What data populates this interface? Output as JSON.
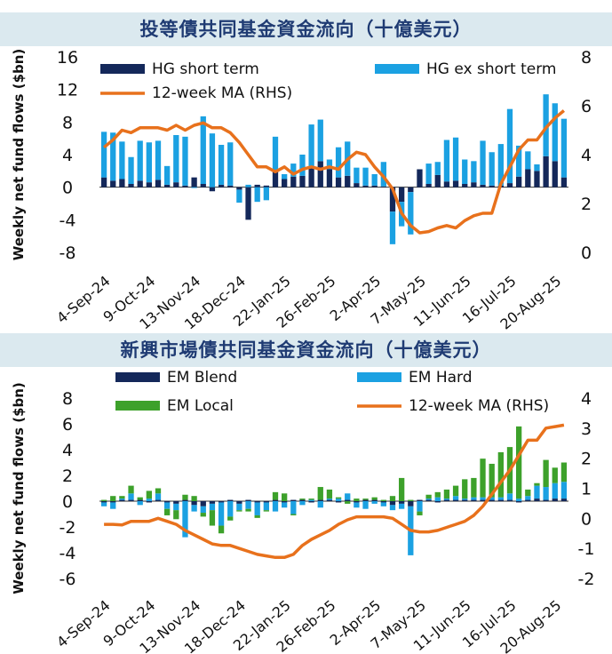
{
  "chart_data": [
    {
      "type": "bar",
      "title": "投等債共同基金資金流向（十億美元）",
      "ylabel": "Weekly net fund flows ($bn)",
      "ylim": [
        -8,
        16
      ],
      "y_ticks": [
        "16",
        "12",
        "8",
        "4",
        "0",
        "-4",
        "-8"
      ],
      "y2lim": [
        0,
        8
      ],
      "y2_ticks": [
        "8",
        "6",
        "4",
        "2",
        "0"
      ],
      "x_tick_labels": [
        "4-Sep-24",
        "9-Oct-24",
        "13-Nov-24",
        "18-Dec-24",
        "22-Jan-25",
        "26-Feb-25",
        "2-Apr-25",
        "7-May-25",
        "11-Jun-25",
        "16-Jul-25",
        "20-Aug-25"
      ],
      "legend": [
        "HG short term",
        "HG ex short term",
        "12-week MA (RHS)"
      ],
      "colors": {
        "short": "#14285a",
        "exshort": "#1ba1e2",
        "ma": "#e8711c"
      },
      "series": [
        {
          "name": "HG short term",
          "values": [
            1.2,
            0.8,
            1.0,
            0.4,
            0.8,
            0.6,
            0.9,
            0.3,
            0.6,
            0.2,
            1.2,
            0.4,
            -0.5,
            0.3,
            0.2,
            -0.3,
            -4.0,
            0.3,
            0.2,
            2.0,
            1.0,
            1.3,
            1.4,
            2.5,
            3.2,
            2.2,
            1.2,
            1.4,
            0.5,
            0.2,
            0.2,
            0.1,
            -3.0,
            -1.8,
            -0.6,
            2.2,
            0.4,
            1.5,
            0.7,
            0.8,
            0.4,
            0.6,
            0.3,
            0.2,
            0.2,
            0.5,
            1.3,
            2.2,
            2.0,
            3.8,
            3.2,
            1.2
          ]
        },
        {
          "name": "HG ex short term",
          "values": [
            5.6,
            5.9,
            4.6,
            3.3,
            4.9,
            4.9,
            4.8,
            2.3,
            5.8,
            6.0,
            -0.1,
            8.3,
            6.6,
            4.9,
            5.3,
            -1.6,
            0.3,
            -1.8,
            -1.6,
            4.2,
            0.6,
            1.6,
            2.6,
            5.2,
            5.1,
            1.2,
            3.7,
            4.2,
            1.9,
            2.2,
            1.4,
            3.0,
            -4.0,
            -3.0,
            -5.2,
            0,
            2.5,
            1.6,
            5.1,
            5.3,
            3.0,
            2.6,
            5.4,
            4.1,
            5.1,
            9.1,
            3.8,
            2.2,
            0.8,
            7.6,
            7.1,
            7.2
          ]
        },
        {
          "name": "12-week MA (RHS)",
          "values": [
            4.3,
            4.6,
            5.0,
            4.9,
            5.1,
            5.1,
            5.1,
            5.0,
            5.2,
            5.0,
            5.2,
            5.3,
            5.1,
            5.1,
            4.9,
            4.5,
            4.0,
            3.5,
            3.5,
            3.3,
            3.5,
            3.2,
            3.4,
            3.5,
            3.4,
            3.5,
            3.4,
            3.8,
            4.1,
            4.0,
            3.5,
            3.1,
            2.6,
            1.6,
            1.1,
            0.8,
            0.85,
            1.0,
            1.1,
            1.0,
            1.3,
            1.5,
            1.6,
            1.6,
            2.8,
            3.5,
            4.2,
            4.6,
            4.6,
            5.1,
            5.5,
            5.8
          ]
        }
      ]
    },
    {
      "type": "bar",
      "title": "新興市場債共同基金資金流向（十億美元）",
      "ylabel": "Weekly net fund flows ($bn)",
      "ylim": [
        -6,
        8
      ],
      "y_ticks": [
        "8",
        "6",
        "4",
        "2",
        "0",
        "-2",
        "-4",
        "-6"
      ],
      "y2lim": [
        -2,
        4
      ],
      "y2_ticks": [
        "4",
        "3",
        "2",
        "1",
        "0",
        "-1",
        "-2"
      ],
      "x_tick_labels": [
        "4-Sep-24",
        "9-Oct-24",
        "13-Nov-24",
        "18-Dec-24",
        "22-Jan-25",
        "26-Feb-25",
        "2-Apr-25",
        "7-May-25",
        "11-Jun-25",
        "16-Jul-25",
        "20-Aug-25"
      ],
      "legend": [
        "EM Blend",
        "EM Hard",
        "EM Local",
        "12-week MA (RHS)"
      ],
      "colors": {
        "blend": "#14285a",
        "hard": "#1ba1e2",
        "local": "#3da12b",
        "ma": "#e8711c"
      },
      "series": [
        {
          "name": "EM Blend",
          "values": [
            -0.1,
            -0.1,
            0.1,
            0.1,
            0.1,
            -0.1,
            0.1,
            -0.1,
            -0.2,
            0.1,
            -0.3,
            -0.4,
            -0.2,
            -0.1,
            0.1,
            -0.2,
            0.1,
            -0.1,
            -0.1,
            0.1,
            -0.1,
            0.1,
            0.1,
            -0.1,
            0.1,
            0.1,
            -0.1,
            0.1,
            -0.1,
            0.1,
            0.1,
            -0.1,
            -0.3,
            -0.2,
            -0.4,
            0.1,
            0.1,
            -0.1,
            0.1,
            0.1,
            0.1,
            0.1,
            0.1,
            0.1,
            0.1,
            0.1,
            -0.1,
            0.1,
            0.2,
            0.1,
            0.2,
            0.2
          ]
        },
        {
          "name": "EM Hard",
          "values": [
            -0.3,
            -0.5,
            0.1,
            0.5,
            -0.3,
            0.2,
            0.5,
            -0.5,
            -0.5,
            -2.8,
            -0.5,
            -0.5,
            -0.5,
            -1.8,
            -1.2,
            -0.5,
            -0.6,
            -1.0,
            -0.6,
            -0.8,
            -0.4,
            -1.0,
            -0.3,
            0.1,
            -0.5,
            0.1,
            0.2,
            0.5,
            -0.4,
            -0.6,
            -0.2,
            -0.3,
            -0.4,
            -0.4,
            -3.8,
            -0.8,
            0.1,
            0.3,
            0.1,
            0.3,
            0.1,
            0.2,
            0.2,
            0.2,
            0.2,
            0.5,
            0.2,
            0.3,
            1.0,
            1.0,
            1.2,
            1.3
          ]
        },
        {
          "name": "EM Local",
          "values": [
            0.1,
            0.4,
            0.2,
            0.6,
            0.2,
            0.6,
            0.4,
            -0.5,
            -0.7,
            0.4,
            0.4,
            -0.3,
            -1.2,
            -0.6,
            -0.3,
            -0.1,
            -0.2,
            -0.2,
            -0.1,
            0.6,
            0.6,
            -0.1,
            0.1,
            0.1,
            1.0,
            0.7,
            0.1,
            -0.2,
            0.2,
            0.1,
            0.2,
            0.1,
            0.4,
            1.8,
            0.1,
            -0.3,
            0.3,
            0.4,
            0.7,
            0.8,
            1.5,
            1.5,
            3.0,
            2.6,
            3.5,
            3.6,
            5.6,
            0.5,
            0.2,
            2.1,
            1.2,
            1.5
          ]
        },
        {
          "name": "12-week MA (RHS)",
          "values": [
            -0.2,
            -0.2,
            -0.22,
            -0.1,
            -0.1,
            -0.1,
            0.0,
            -0.1,
            -0.2,
            -0.4,
            -0.55,
            -0.7,
            -0.85,
            -0.9,
            -0.9,
            -1.0,
            -1.1,
            -1.2,
            -1.25,
            -1.3,
            -1.3,
            -1.2,
            -0.9,
            -0.7,
            -0.55,
            -0.4,
            -0.2,
            -0.05,
            0.05,
            0.05,
            0.05,
            0.05,
            0.0,
            -0.2,
            -0.4,
            -0.45,
            -0.45,
            -0.4,
            -0.3,
            -0.2,
            -0.1,
            0.1,
            0.4,
            0.8,
            1.2,
            1.6,
            2.1,
            2.6,
            2.6,
            3.0,
            3.05,
            3.1
          ]
        }
      ]
    }
  ]
}
